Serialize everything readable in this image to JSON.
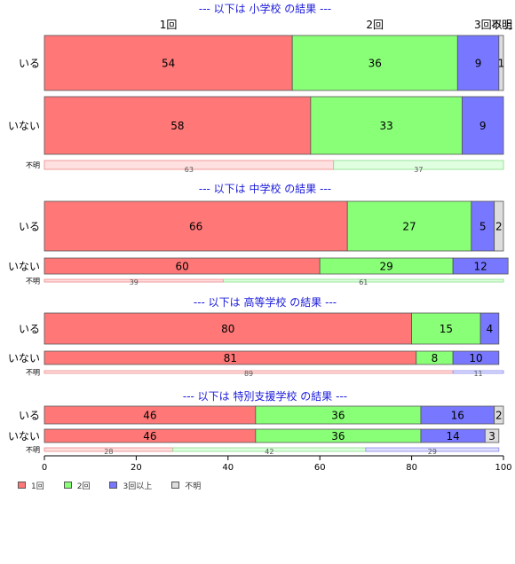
{
  "chart_data": {
    "type": "bar",
    "orientation": "horizontal",
    "stacked": true,
    "normalized": true,
    "xlim": [
      0,
      100
    ],
    "xticks": [
      "0",
      "20",
      "40",
      "60",
      "80",
      "100"
    ],
    "categories_header": [
      "1回",
      "2回",
      "3回以上",
      "不明"
    ],
    "colors": [
      "#ff7777",
      "#88ff77",
      "#7777ff",
      "#dddddd"
    ],
    "legend": {
      "placement": "bottom-left",
      "entries": [
        "1回",
        "2回",
        "3回以上",
        "不明"
      ]
    },
    "panels": [
      {
        "title": "--- 以下は 小学校 の結果 ---",
        "rows": [
          {
            "label": "いる",
            "values": [
              54,
              36,
              9,
              1
            ]
          },
          {
            "label": "いない",
            "values": [
              58,
              33,
              9,
              0
            ]
          },
          {
            "label": "不明",
            "values": [
              63,
              37,
              0,
              0
            ]
          }
        ]
      },
      {
        "title": "--- 以下は 中学校 の結果 ---",
        "rows": [
          {
            "label": "いる",
            "values": [
              66,
              27,
              5,
              2
            ]
          },
          {
            "label": "いない",
            "values": [
              60,
              29,
              12,
              0
            ]
          },
          {
            "label": "不明",
            "values": [
              39,
              61,
              0,
              0
            ]
          }
        ]
      },
      {
        "title": "--- 以下は 高等学校 の結果 ---",
        "rows": [
          {
            "label": "いる",
            "values": [
              80,
              15,
              4,
              0
            ]
          },
          {
            "label": "いない",
            "values": [
              81,
              8,
              10,
              0
            ]
          },
          {
            "label": "不明",
            "values": [
              89,
              0,
              11,
              0
            ]
          }
        ]
      },
      {
        "title": "--- 以下は 特別支援学校 の結果 ---",
        "rows": [
          {
            "label": "いる",
            "values": [
              46,
              36,
              16,
              2
            ]
          },
          {
            "label": "いない",
            "values": [
              46,
              36,
              14,
              3
            ]
          },
          {
            "label": "不明",
            "values": [
              28,
              42,
              29,
              0
            ]
          }
        ]
      }
    ]
  }
}
